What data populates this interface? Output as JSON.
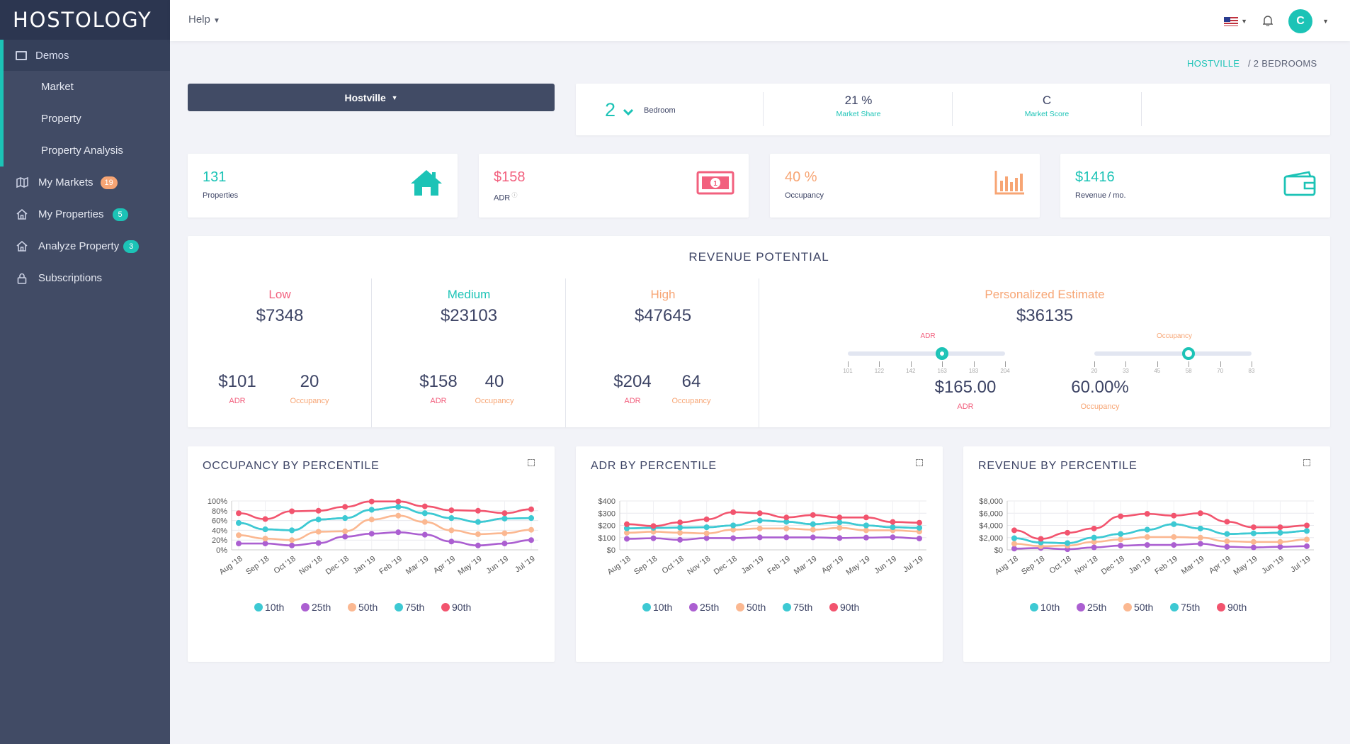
{
  "app": {
    "logo": "HOSTOLOGY"
  },
  "sidebar": {
    "section": "Demos",
    "sub": [
      "Market",
      "Property",
      "Property Analysis"
    ],
    "items": [
      {
        "label": "My Markets",
        "badge": "19",
        "color": "#f7a574"
      },
      {
        "label": "My Properties",
        "badge": "5",
        "color": "#1cc3b6"
      },
      {
        "label": "Analyze Property",
        "badge": "3",
        "color": "#1cc3b6"
      },
      {
        "label": "Subscriptions",
        "badge": "",
        "color": ""
      }
    ]
  },
  "topbar": {
    "help": "Help",
    "avatar": "C"
  },
  "breadcrumb": {
    "link": "HOSTVILLE",
    "current": "/ 2 BEDROOMS"
  },
  "market_select": "Hostville",
  "bedroom": {
    "value": "2",
    "label": "Bedroom",
    "share": "21 %",
    "share_label": "Market Share",
    "score": "C",
    "score_label": "Market Score"
  },
  "kpis": [
    {
      "value": "131",
      "label": "Properties",
      "color": "#1cc3b6"
    },
    {
      "value": "$158",
      "label": "ADR",
      "color": "#f2607e"
    },
    {
      "value": "40 %",
      "label": "Occupancy",
      "color": "#f7a574"
    },
    {
      "value": "$1416",
      "label": "Revenue / mo.",
      "color": "#1cc3b6"
    }
  ],
  "revenue": {
    "title": "REVENUE POTENTIAL",
    "tiers": [
      {
        "name": "Low",
        "color": "#f2607e",
        "total": "$7348",
        "adr": "$101",
        "occ": "20"
      },
      {
        "name": "Medium",
        "color": "#1cc3b6",
        "total": "$23103",
        "adr": "$158",
        "occ": "40"
      },
      {
        "name": "High",
        "color": "#f7a574",
        "total": "$47645",
        "adr": "$204",
        "occ": "64"
      }
    ],
    "adr_label": "ADR",
    "occ_label": "Occupancy",
    "personal": {
      "name": "Personalized Estimate",
      "total": "$36135",
      "adr": "$165.00",
      "occ": "60.00%",
      "adr_ticks": [
        "101",
        "122",
        "142",
        "163",
        "183",
        "204"
      ],
      "occ_ticks": [
        "20",
        "33",
        "45",
        "58",
        "70",
        "83"
      ],
      "adr_slider": 0.6,
      "occ_slider": 0.6
    }
  },
  "chart_data": [
    {
      "type": "line",
      "title": "OCCUPANCY BY PERCENTILE",
      "categories": [
        "Aug '18",
        "Sep '18",
        "Oct '18",
        "Nov '18",
        "Dec '18",
        "Jan '19",
        "Feb '19",
        "Mar '19",
        "Apr '19",
        "May '19",
        "Jun '19",
        "Jul '19"
      ],
      "yticks": [
        "0%",
        "20%",
        "40%",
        "60%",
        "80%",
        "100%"
      ],
      "ylim": [
        0,
        100
      ],
      "series": [
        {
          "name": "10th",
          "color": "#3dc9d3",
          "values": [
            55,
            42,
            40,
            62,
            65,
            82,
            88,
            75,
            65,
            57,
            64,
            65
          ]
        },
        {
          "name": "25th",
          "color": "#ab5fd1",
          "values": [
            13,
            13,
            9,
            14,
            27,
            33,
            36,
            31,
            17,
            9,
            13,
            20
          ]
        },
        {
          "name": "50th",
          "color": "#fbb891",
          "values": [
            30,
            23,
            20,
            37,
            38,
            62,
            70,
            57,
            40,
            32,
            34,
            41
          ]
        },
        {
          "name": "75th",
          "color": "#3dc9d3",
          "values": [
            55,
            42,
            40,
            62,
            65,
            82,
            88,
            75,
            65,
            57,
            64,
            65
          ]
        },
        {
          "name": "90th",
          "color": "#f2546e",
          "values": [
            75,
            63,
            79,
            80,
            88,
            99,
            99,
            89,
            81,
            80,
            75,
            83
          ]
        }
      ]
    },
    {
      "type": "line",
      "title": "ADR BY PERCENTILE",
      "categories": [
        "Aug '18",
        "Sep '18",
        "Oct '18",
        "Nov '18",
        "Dec '18",
        "Jan '19",
        "Feb '19",
        "Mar '19",
        "Apr '19",
        "May '19",
        "Jun '19",
        "Jul '19"
      ],
      "yticks": [
        "$0",
        "$100",
        "$200",
        "$300",
        "$400"
      ],
      "ylim": [
        0,
        400
      ],
      "series": [
        {
          "name": "10th",
          "color": "#3dc9d3",
          "values": [
            176,
            180,
            182,
            185,
            200,
            240,
            230,
            210,
            225,
            200,
            185,
            180
          ]
        },
        {
          "name": "25th",
          "color": "#ab5fd1",
          "values": [
            90,
            95,
            82,
            96,
            96,
            102,
            102,
            102,
            97,
            100,
            103,
            93
          ]
        },
        {
          "name": "50th",
          "color": "#fbb891",
          "values": [
            140,
            148,
            140,
            135,
            165,
            175,
            175,
            165,
            180,
            160,
            160,
            150
          ]
        },
        {
          "name": "75th",
          "color": "#3dc9d3",
          "values": [
            176,
            180,
            182,
            185,
            200,
            240,
            230,
            210,
            225,
            200,
            185,
            180
          ]
        },
        {
          "name": "90th",
          "color": "#f2546e",
          "values": [
            210,
            195,
            225,
            250,
            308,
            300,
            265,
            285,
            265,
            265,
            228,
            222
          ]
        }
      ]
    },
    {
      "type": "line",
      "title": "REVENUE BY PERCENTILE",
      "categories": [
        "Aug '18",
        "Sep '18",
        "Oct '18",
        "Nov '18",
        "Dec '18",
        "Jan '19",
        "Feb '19",
        "Mar '19",
        "Apr '19",
        "May '19",
        "Jun '19",
        "Jul '19"
      ],
      "yticks": [
        "$0",
        "$2,000",
        "$4,000",
        "$6,000",
        "$8,000"
      ],
      "ylim": [
        0,
        8000
      ],
      "series": [
        {
          "name": "10th",
          "color": "#3dc9d3",
          "values": [
            1900,
            1200,
            1100,
            2000,
            2600,
            3300,
            4200,
            3500,
            2600,
            2700,
            2800,
            3100
          ]
        },
        {
          "name": "25th",
          "color": "#ab5fd1",
          "values": [
            200,
            300,
            100,
            400,
            700,
            800,
            800,
            1000,
            500,
            400,
            500,
            600
          ]
        },
        {
          "name": "50th",
          "color": "#fbb891",
          "values": [
            1000,
            600,
            700,
            1300,
            1700,
            2100,
            2100,
            2000,
            1400,
            1300,
            1300,
            1700
          ]
        },
        {
          "name": "75th",
          "color": "#3dc9d3",
          "values": [
            1900,
            1200,
            1100,
            2000,
            2600,
            3300,
            4200,
            3500,
            2600,
            2700,
            2800,
            3100
          ]
        },
        {
          "name": "90th",
          "color": "#f2546e",
          "values": [
            3200,
            1800,
            2800,
            3500,
            5500,
            5900,
            5600,
            6000,
            4600,
            3700,
            3700,
            4000
          ]
        }
      ]
    }
  ]
}
